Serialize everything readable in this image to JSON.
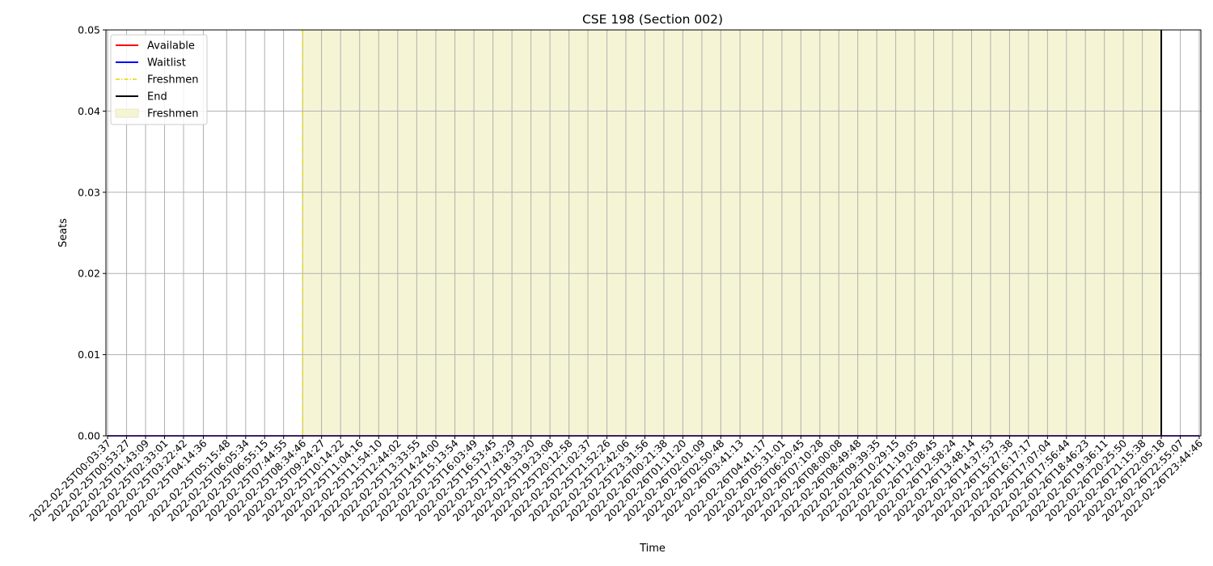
{
  "chart_data": {
    "type": "line",
    "title": "CSE 198 (Section 002)",
    "xlabel": "Time",
    "ylabel": "Seats",
    "ylim": [
      0,
      0.05
    ],
    "yticks": [
      "0.00",
      "0.01",
      "0.02",
      "0.03",
      "0.04",
      "0.05"
    ],
    "grid": true,
    "legend_position": "top-left",
    "x": [
      "2022-02-25T00:03:37",
      "2022-02-25T00:53:27",
      "2022-02-25T01:43:09",
      "2022-02-25T02:33:01",
      "2022-02-25T03:22:42",
      "2022-02-25T04:14:36",
      "2022-02-25T05:15:48",
      "2022-02-25T06:05:34",
      "2022-02-25T06:55:15",
      "2022-02-25T07:44:55",
      "2022-02-25T08:34:46",
      "2022-02-25T09:24:27",
      "2022-02-25T10:14:22",
      "2022-02-25T11:04:16",
      "2022-02-25T11:54:10",
      "2022-02-25T12:44:02",
      "2022-02-25T13:33:55",
      "2022-02-25T14:24:00",
      "2022-02-25T15:13:54",
      "2022-02-25T16:03:49",
      "2022-02-25T16:53:45",
      "2022-02-25T17:43:29",
      "2022-02-25T18:33:20",
      "2022-02-25T19:23:08",
      "2022-02-25T20:12:58",
      "2022-02-25T21:02:37",
      "2022-02-25T21:52:26",
      "2022-02-25T22:42:06",
      "2022-02-25T23:31:56",
      "2022-02-26T00:21:38",
      "2022-02-26T01:11:20",
      "2022-02-26T02:01:09",
      "2022-02-26T02:50:48",
      "2022-02-26T03:41:13",
      "2022-02-26T04:41:17",
      "2022-02-26T05:31:01",
      "2022-02-26T06:20:45",
      "2022-02-26T07:10:28",
      "2022-02-26T08:00:08",
      "2022-02-26T08:49:48",
      "2022-02-26T09:39:35",
      "2022-02-26T10:29:15",
      "2022-02-26T11:19:05",
      "2022-02-26T12:08:45",
      "2022-02-26T12:58:24",
      "2022-02-26T13:48:14",
      "2022-02-26T14:37:53",
      "2022-02-26T15:27:38",
      "2022-02-26T16:17:17",
      "2022-02-26T17:07:04",
      "2022-02-26T17:56:44",
      "2022-02-26T18:46:23",
      "2022-02-26T19:36:11",
      "2022-02-26T20:25:50",
      "2022-02-26T21:15:38",
      "2022-02-26T22:05:18",
      "2022-02-26T22:55:07",
      "2022-02-26T23:44:46"
    ],
    "series": [
      {
        "name": "Available",
        "color": "#ff0000",
        "style": "solid",
        "value": 0
      },
      {
        "name": "Waitlist",
        "color": "#0000ff",
        "style": "solid",
        "value": 0
      }
    ],
    "markers": [
      {
        "name": "Freshmen",
        "color": "#e6d600",
        "style": "dashdot",
        "x": "2022-02-25T08:34:46"
      },
      {
        "name": "End",
        "color": "#000000",
        "style": "solid",
        "x": "2022-02-26T22:05:18"
      }
    ],
    "shaded_region": {
      "name": "Freshmen",
      "color": "#f5f5d5",
      "x_start": "2022-02-25T08:34:46",
      "x_end": "2022-02-26T22:05:18"
    },
    "legend": [
      "Available",
      "Waitlist",
      "Freshmen",
      "End",
      "Freshmen"
    ]
  }
}
